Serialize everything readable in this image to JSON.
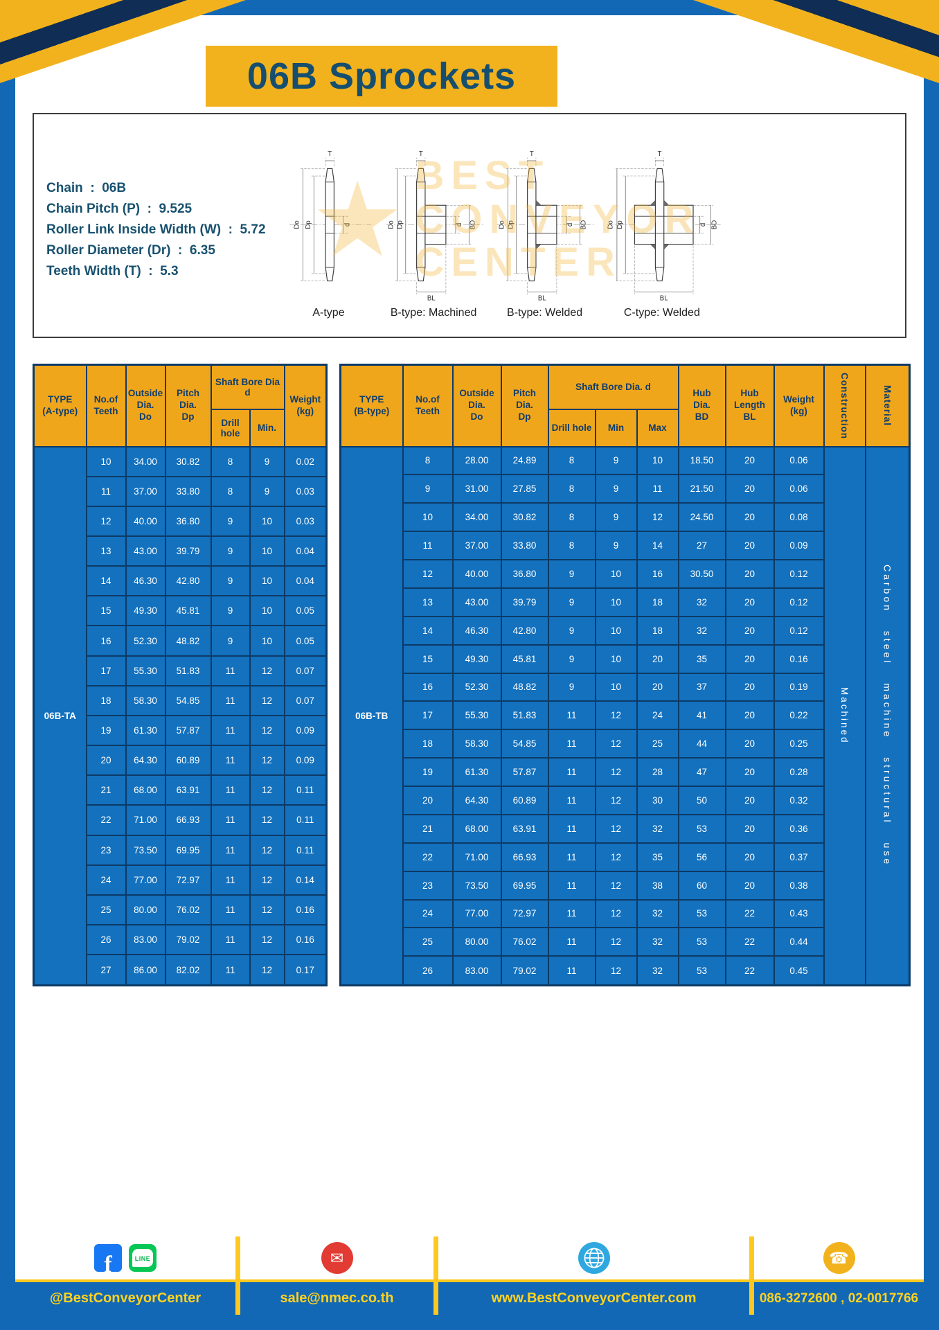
{
  "page": {
    "title": "06B Sprockets"
  },
  "colors": {
    "frame_blue": "#1368b5",
    "accent_yellow": "#f2b21d",
    "table_header_yellow": "#f0a61b",
    "table_cell_blue": "#1371be",
    "table_border_navy": "#0d3a66",
    "title_text": "#164e70",
    "footer_text_yellow": "#ffd21e"
  },
  "specs": {
    "lines": [
      "Chain  :  06B",
      "Chain Pitch (P)  :  9.525",
      "Roller Link Inside Width (W)  :  5.72",
      "Roller Diameter (Dr)  :  6.35",
      "Teeth Width (T)  :  5.3"
    ]
  },
  "diagrams": {
    "captions": [
      "A-type",
      "B-type: Machined",
      "B-type: Welded",
      "C-type: Welded"
    ],
    "dims": {
      "T": "T",
      "Do": "Do",
      "Dp": "Dp",
      "d": "d",
      "BD": "BD",
      "BL": "BL"
    },
    "watermark": "BEST\nCONVEYOR\nCENTER"
  },
  "tableA": {
    "headers": {
      "type": "TYPE\n(A-type)",
      "teeth": "No.of\nTeeth",
      "outside": "Outside\nDia.\nDo",
      "pitch": "Pitch Dia.\nDp",
      "bore_group": "Shaft Bore Dia d",
      "drill": "Drill hole",
      "min": "Min.",
      "weight": "Weight\n(kg)"
    },
    "type_label": "06B-TA",
    "rows": [
      [
        "10",
        "34.00",
        "30.82",
        "8",
        "9",
        "0.02"
      ],
      [
        "11",
        "37.00",
        "33.80",
        "8",
        "9",
        "0.03"
      ],
      [
        "12",
        "40.00",
        "36.80",
        "9",
        "10",
        "0.03"
      ],
      [
        "13",
        "43.00",
        "39.79",
        "9",
        "10",
        "0.04"
      ],
      [
        "14",
        "46.30",
        "42.80",
        "9",
        "10",
        "0.04"
      ],
      [
        "15",
        "49.30",
        "45.81",
        "9",
        "10",
        "0.05"
      ],
      [
        "16",
        "52.30",
        "48.82",
        "9",
        "10",
        "0.05"
      ],
      [
        "17",
        "55.30",
        "51.83",
        "11",
        "12",
        "0.07"
      ],
      [
        "18",
        "58.30",
        "54.85",
        "11",
        "12",
        "0.07"
      ],
      [
        "19",
        "61.30",
        "57.87",
        "11",
        "12",
        "0.09"
      ],
      [
        "20",
        "64.30",
        "60.89",
        "11",
        "12",
        "0.09"
      ],
      [
        "21",
        "68.00",
        "63.91",
        "11",
        "12",
        "0.11"
      ],
      [
        "22",
        "71.00",
        "66.93",
        "11",
        "12",
        "0.11"
      ],
      [
        "23",
        "73.50",
        "69.95",
        "11",
        "12",
        "0.11"
      ],
      [
        "24",
        "77.00",
        "72.97",
        "11",
        "12",
        "0.14"
      ],
      [
        "25",
        "80.00",
        "76.02",
        "11",
        "12",
        "0.16"
      ],
      [
        "26",
        "83.00",
        "79.02",
        "11",
        "12",
        "0.16"
      ],
      [
        "27",
        "86.00",
        "82.02",
        "11",
        "12",
        "0.17"
      ]
    ]
  },
  "tableB": {
    "headers": {
      "type": "TYPE\n(B-type)",
      "teeth": "No.of\nTeeth",
      "outside": "Outside\nDia.\nDo",
      "pitch": "Pitch\nDia.\nDp",
      "bore_group": "Shaft Bore Dia.  d",
      "drill": "Drill hole",
      "min": "Min",
      "max": "Max",
      "hub_dia": "Hub\nDia.\nBD",
      "hub_len": "Hub\nLength\nBL",
      "weight": "Weight\n(kg)",
      "construction": "Construction",
      "material": "Material"
    },
    "type_label": "06B-TB",
    "construction_value": "Machined",
    "material_value": "Carbon steel machine structural use",
    "rows": [
      [
        "8",
        "28.00",
        "24.89",
        "8",
        "9",
        "10",
        "18.50",
        "20",
        "0.06"
      ],
      [
        "9",
        "31.00",
        "27.85",
        "8",
        "9",
        "11",
        "21.50",
        "20",
        "0.06"
      ],
      [
        "10",
        "34.00",
        "30.82",
        "8",
        "9",
        "12",
        "24.50",
        "20",
        "0.08"
      ],
      [
        "11",
        "37.00",
        "33.80",
        "8",
        "9",
        "14",
        "27",
        "20",
        "0.09"
      ],
      [
        "12",
        "40.00",
        "36.80",
        "9",
        "10",
        "16",
        "30.50",
        "20",
        "0.12"
      ],
      [
        "13",
        "43.00",
        "39.79",
        "9",
        "10",
        "18",
        "32",
        "20",
        "0.12"
      ],
      [
        "14",
        "46.30",
        "42.80",
        "9",
        "10",
        "18",
        "32",
        "20",
        "0.12"
      ],
      [
        "15",
        "49.30",
        "45.81",
        "9",
        "10",
        "20",
        "35",
        "20",
        "0.16"
      ],
      [
        "16",
        "52.30",
        "48.82",
        "9",
        "10",
        "20",
        "37",
        "20",
        "0.19"
      ],
      [
        "17",
        "55.30",
        "51.83",
        "11",
        "12",
        "24",
        "41",
        "20",
        "0.22"
      ],
      [
        "18",
        "58.30",
        "54.85",
        "11",
        "12",
        "25",
        "44",
        "20",
        "0.25"
      ],
      [
        "19",
        "61.30",
        "57.87",
        "11",
        "12",
        "28",
        "47",
        "20",
        "0.28"
      ],
      [
        "20",
        "64.30",
        "60.89",
        "11",
        "12",
        "30",
        "50",
        "20",
        "0.32"
      ],
      [
        "21",
        "68.00",
        "63.91",
        "11",
        "12",
        "32",
        "53",
        "20",
        "0.36"
      ],
      [
        "22",
        "71.00",
        "66.93",
        "11",
        "12",
        "35",
        "56",
        "20",
        "0.37"
      ],
      [
        "23",
        "73.50",
        "69.95",
        "11",
        "12",
        "38",
        "60",
        "20",
        "0.38"
      ],
      [
        "24",
        "77.00",
        "72.97",
        "11",
        "12",
        "32",
        "53",
        "22",
        "0.43"
      ],
      [
        "25",
        "80.00",
        "76.02",
        "11",
        "12",
        "32",
        "53",
        "22",
        "0.44"
      ],
      [
        "26",
        "83.00",
        "79.02",
        "11",
        "12",
        "32",
        "53",
        "22",
        "0.45"
      ]
    ]
  },
  "footer": {
    "social_handle": "@BestConveyorCenter",
    "email": "sale@nmec.co.th",
    "website": "www.BestConveyorCenter.com",
    "phones": "086-3272600 , 02-0017766",
    "facebook_letter": "f",
    "line_label": "LINE",
    "icons": {
      "mail": "✉",
      "phone": "☎"
    }
  }
}
